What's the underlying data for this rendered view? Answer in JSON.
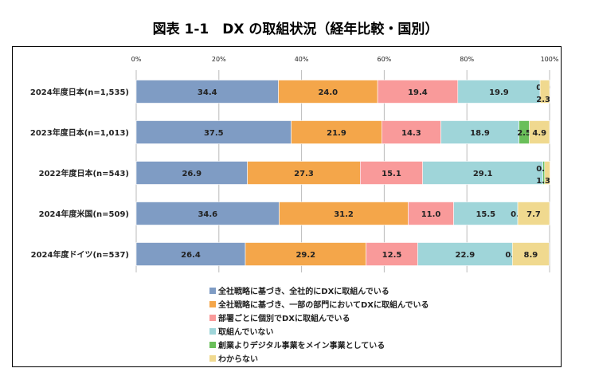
{
  "chart_data": {
    "type": "bar",
    "orientation": "horizontal",
    "stacked": true,
    "title": "図表 1-1　DX の取組状況（経年比較・国別）",
    "categories": [
      "2024年度日本(n=1,535)",
      "2023年度日本(n=1,013)",
      "2022年度日本(n=543)",
      "2024年度米国(n=509)",
      "2024年度ドイツ(n=537)"
    ],
    "xlim": [
      0,
      100
    ],
    "xticks": [
      "0%",
      "20%",
      "40%",
      "60%",
      "80%",
      "100%"
    ],
    "grid": true,
    "legend_position": "bottom",
    "series": [
      {
        "name": "全社戦略に基づき、全社的にDXに取組んでいる",
        "color": "#7f9cc4",
        "values": [
          34.4,
          37.5,
          26.9,
          34.6,
          26.4
        ]
      },
      {
        "name": "全社戦略に基づき、一部の部門においてDXに取組んでいる",
        "color": "#f4a64a",
        "values": [
          24.0,
          21.9,
          27.3,
          31.2,
          29.2
        ]
      },
      {
        "name": "部署ごとに個別でDXに取組んでいる",
        "color": "#f99a9a",
        "values": [
          19.4,
          14.3,
          15.1,
          11.0,
          12.5
        ]
      },
      {
        "name": "取組んでいない",
        "color": "#9fd5d9",
        "values": [
          19.9,
          18.9,
          29.1,
          15.5,
          22.9
        ]
      },
      {
        "name": "創業よりデジタル事業をメイン事業としている",
        "color": "#6abf5a",
        "values": [
          0.0,
          2.5,
          0.4,
          0.0,
          0.0
        ]
      },
      {
        "name": "わからない",
        "color": "#f0d98f",
        "values": [
          2.3,
          4.9,
          1.3,
          7.7,
          8.9
        ]
      }
    ]
  }
}
